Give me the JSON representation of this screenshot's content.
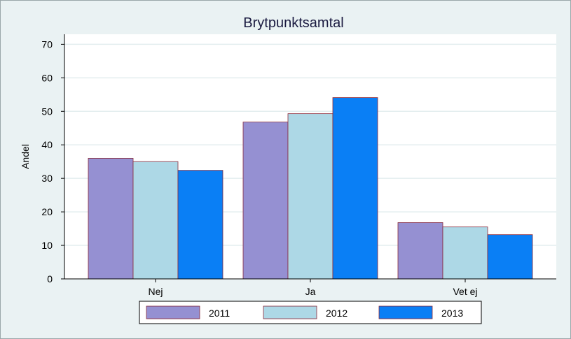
{
  "chart_data": {
    "type": "bar",
    "title": "Brytpunktsamtal",
    "xlabel": "",
    "ylabel": "Andel",
    "categories": [
      "Nej",
      "Ja",
      "Vet ej"
    ],
    "series": [
      {
        "name": "2011",
        "values": [
          36,
          46.8,
          16.8
        ],
        "color": "#9590d2"
      },
      {
        "name": "2012",
        "values": [
          35,
          49.3,
          15.5
        ],
        "color": "#add8e6"
      },
      {
        "name": "2013",
        "values": [
          32.4,
          54.1,
          13.2
        ],
        "color": "#0a7ff5"
      }
    ],
    "ylim": [
      0,
      73
    ],
    "yticks": [
      0,
      10,
      20,
      30,
      40,
      50,
      60,
      70
    ],
    "grid": true,
    "legend_position": "bottom",
    "colors": {
      "background": "#eaf2f3",
      "plot_background": "#ffffff",
      "gridline": "#e3eeef",
      "bar_outline": "#8a2a3a"
    }
  }
}
